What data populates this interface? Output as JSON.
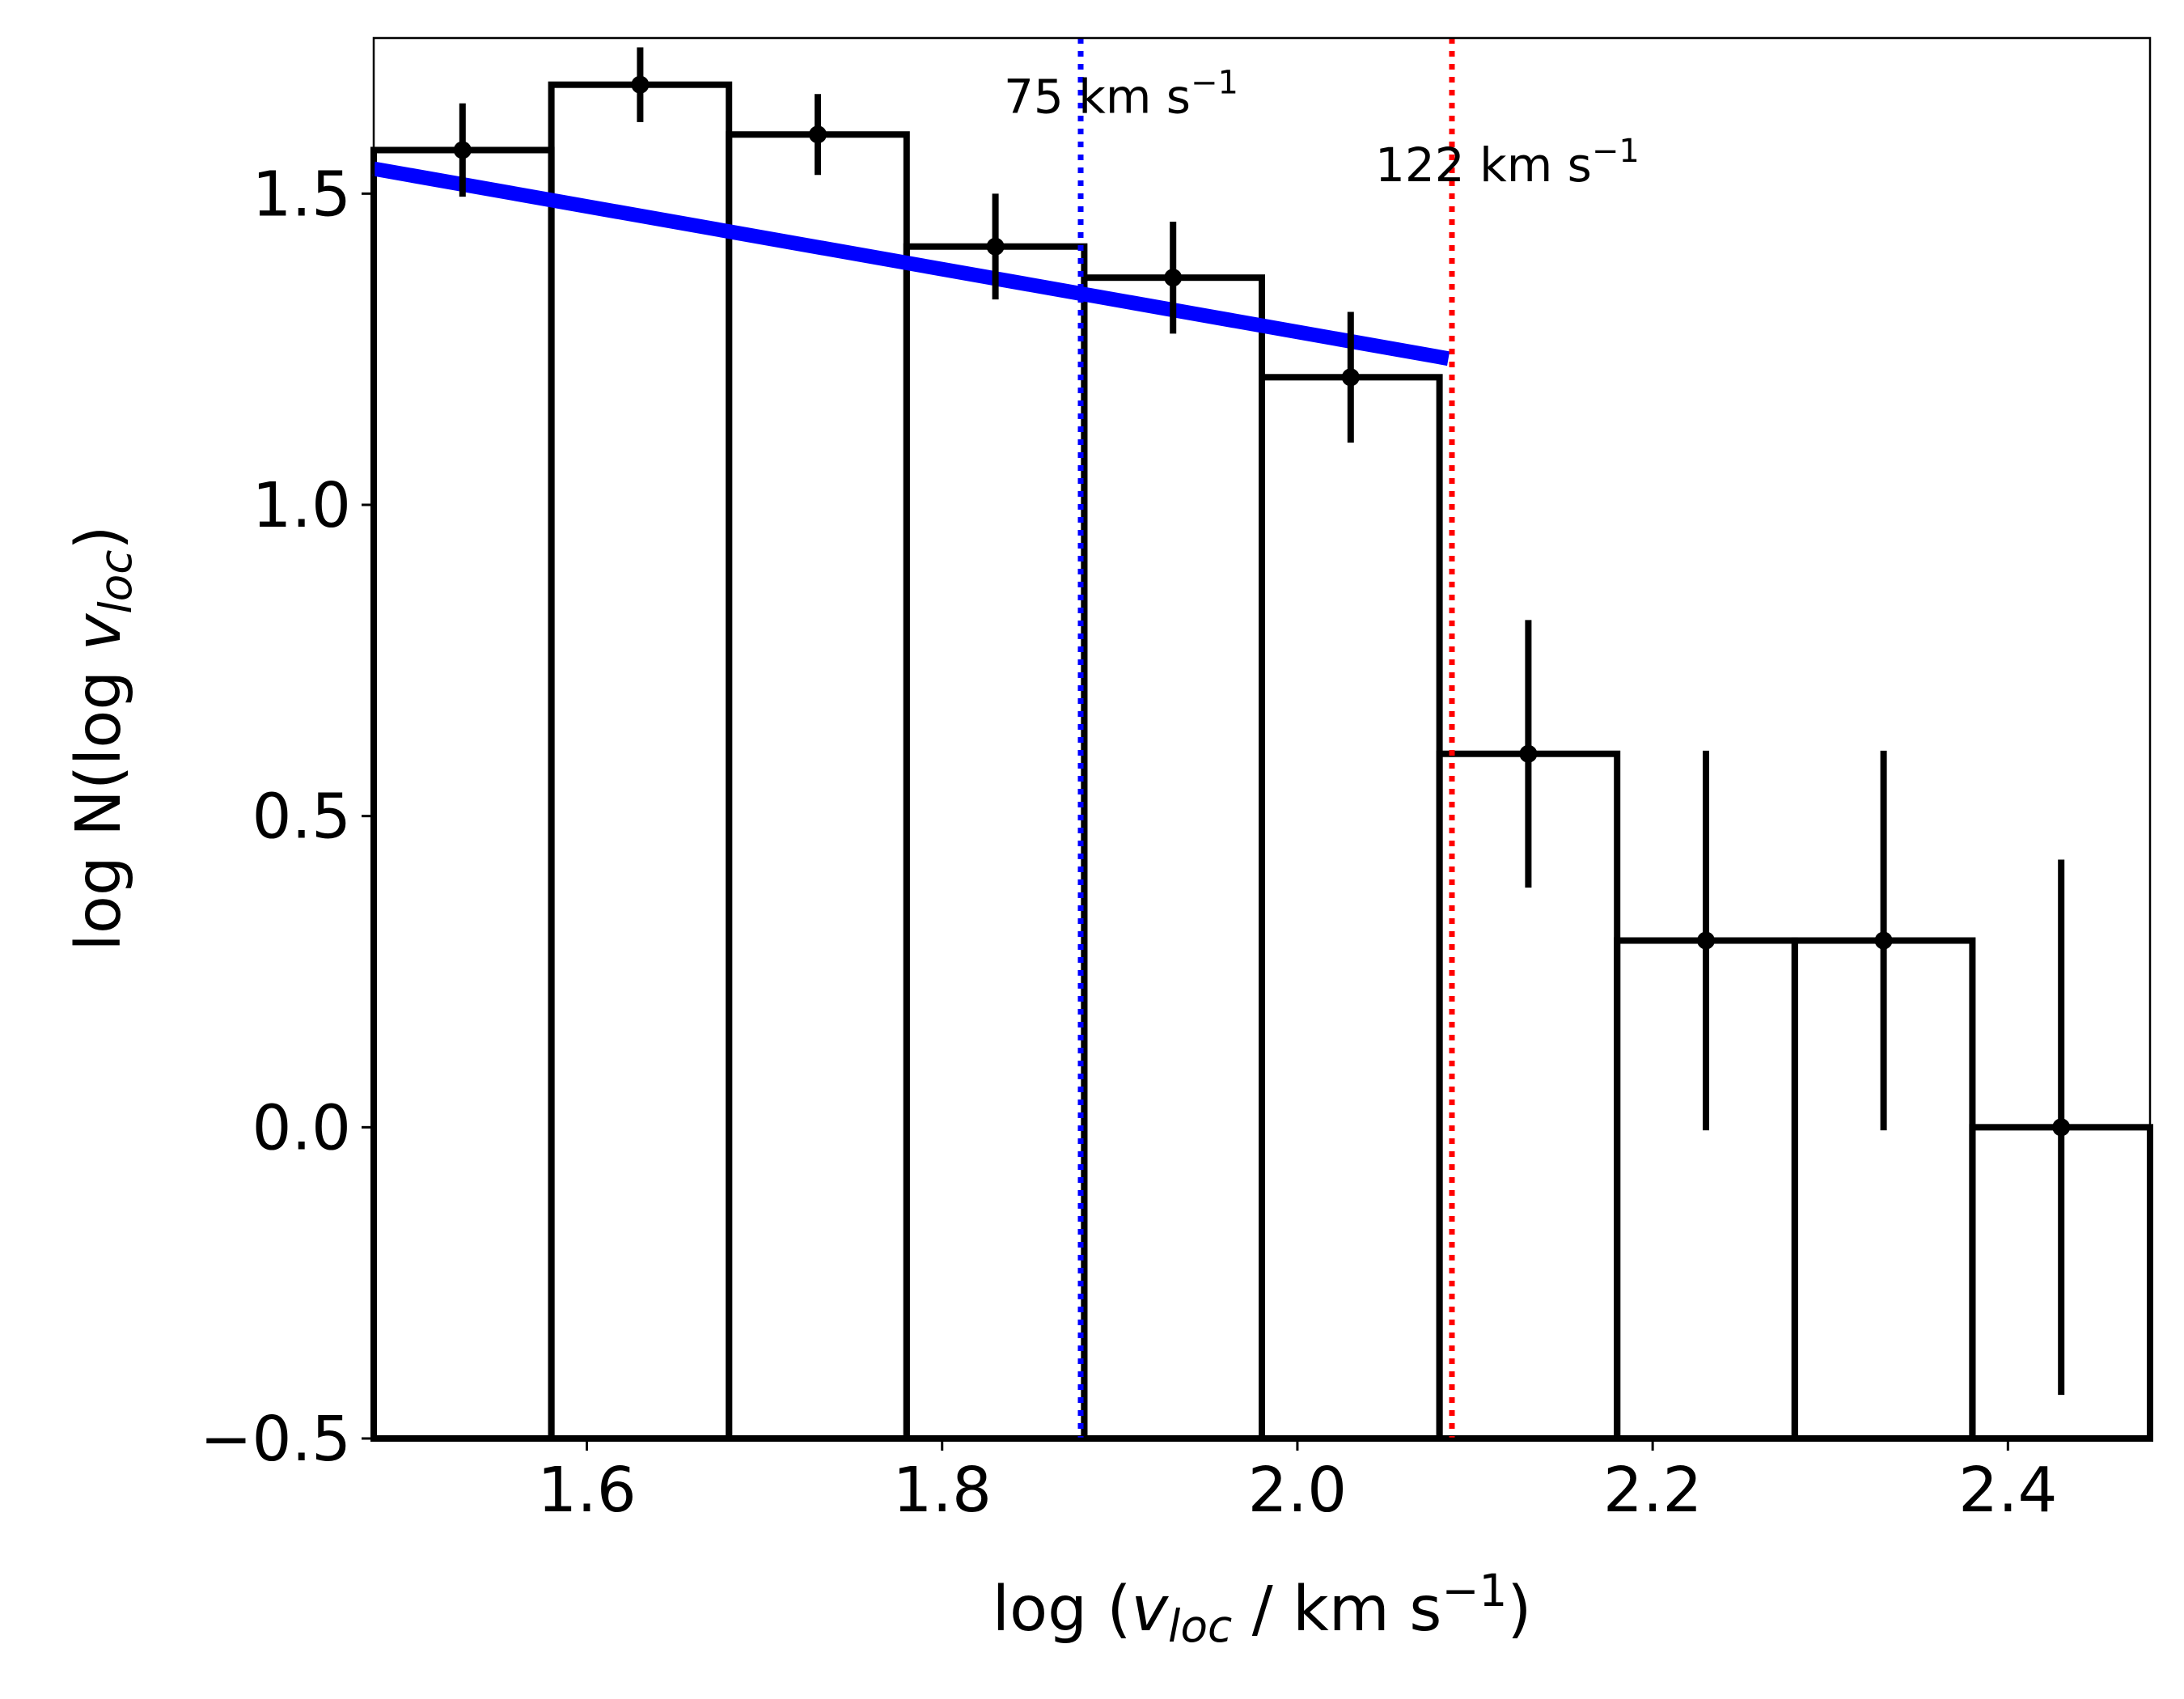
{
  "chart_data": {
    "type": "bar",
    "title": "",
    "xlabel": {
      "prefix": "log (",
      "var": "v",
      "sub": "loc",
      "unit": " / km s",
      "sup": "−1",
      "suffix": ")"
    },
    "ylabel": {
      "prefix": "log N(log ",
      "var": "v",
      "sub": "loc",
      "suffix": ")"
    },
    "xlim": [
      1.48,
      2.48
    ],
    "ylim": [
      -0.5,
      1.75
    ],
    "xticks": [
      1.6,
      1.8,
      2.0,
      2.2,
      2.4
    ],
    "xtick_labels": [
      "1.6",
      "1.8",
      "2.0",
      "2.2",
      "2.4"
    ],
    "yticks": [
      -0.5,
      0.0,
      0.5,
      1.0,
      1.5
    ],
    "ytick_labels": [
      "−0.5",
      "0.0",
      "0.5",
      "1.0",
      "1.5"
    ],
    "bin_edges": [
      1.48,
      1.58,
      1.68,
      1.78,
      1.88,
      1.98,
      2.08,
      2.18,
      2.28,
      2.38,
      2.48
    ],
    "values": [
      1.57,
      1.675,
      1.595,
      1.415,
      1.365,
      1.205,
      0.6,
      0.3,
      0.3,
      0.0
    ],
    "points": {
      "x": [
        1.53,
        1.63,
        1.73,
        1.83,
        1.93,
        2.03,
        2.13,
        2.23,
        2.33,
        2.43
      ],
      "y": [
        1.57,
        1.675,
        1.595,
        1.415,
        1.365,
        1.205,
        0.6,
        0.3,
        0.3,
        0.0
      ],
      "err": [
        0.075,
        0.06,
        0.065,
        0.085,
        0.09,
        0.105,
        0.215,
        0.305,
        0.305,
        0.43
      ]
    },
    "fit_line": {
      "x": [
        1.48,
        2.085
      ],
      "y": [
        1.54,
        1.235
      ],
      "color": "#0000ff"
    },
    "vlines": [
      {
        "x": 1.878,
        "color": "#0000ff",
        "style": "dotted",
        "label": {
          "text": "75 km s",
          "sup": "−1"
        },
        "label_y": 1.63
      },
      {
        "x": 2.087,
        "color": "#ff0000",
        "style": "dotted",
        "label": {
          "text": "122 km s",
          "sup": "−1"
        },
        "label_y": 1.52
      }
    ],
    "bar_edge_color": "#000000",
    "bar_fill": "none",
    "grid": false
  }
}
